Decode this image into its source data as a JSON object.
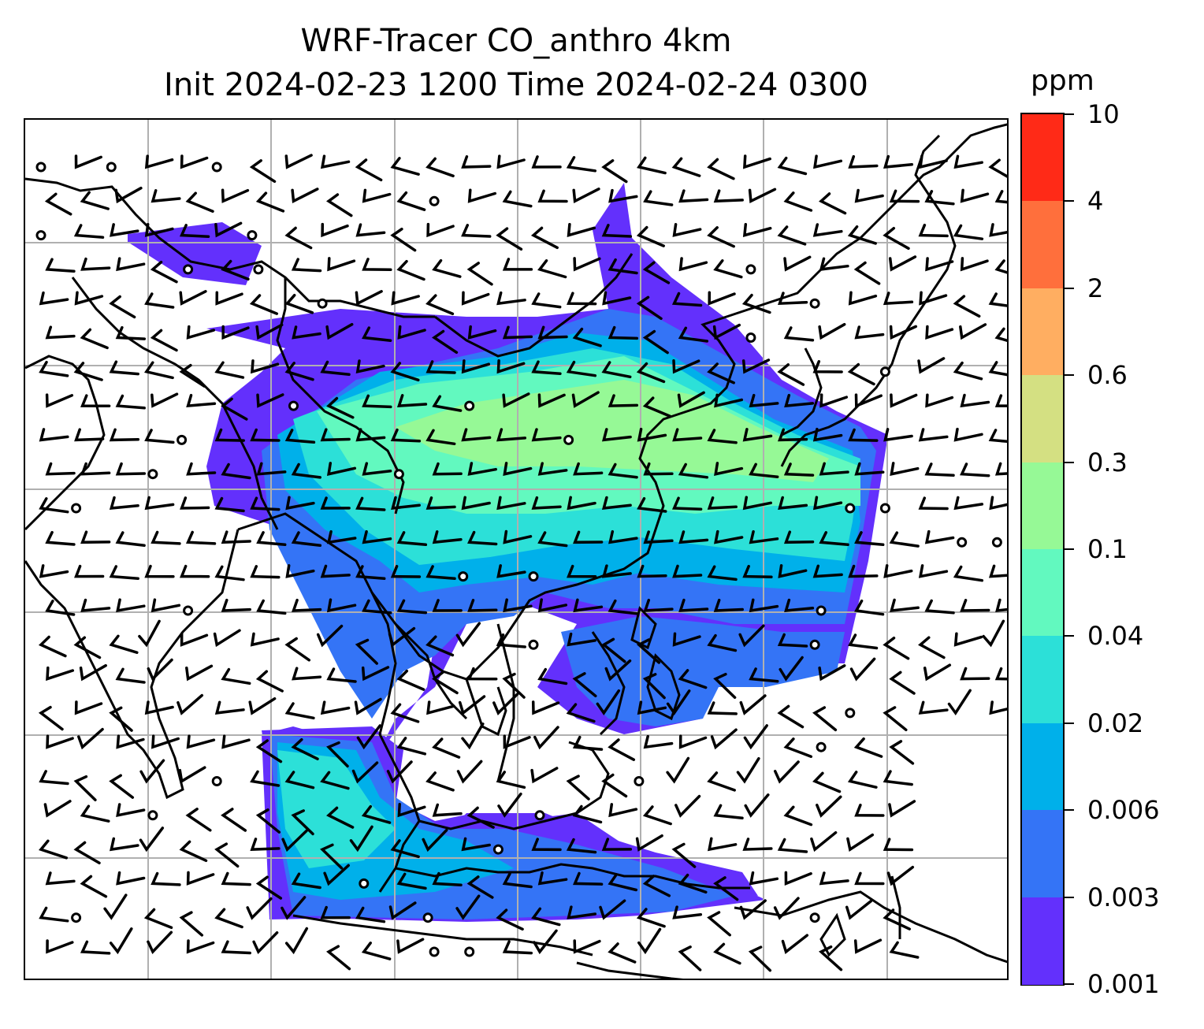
{
  "title": {
    "line1": "WRF-Tracer CO_anthro 4km",
    "line2": "Init 2024-02-23 1200 Time 2024-02-24 0300"
  },
  "colorbar": {
    "unit": "ppm",
    "levels": [
      {
        "label": "10",
        "color": null
      },
      {
        "label": "4",
        "color": "#ff2a17"
      },
      {
        "label": "2",
        "color": "#ff6f3c"
      },
      {
        "label": "0.6",
        "color": "#ffae61"
      },
      {
        "label": "0.3",
        "color": "#d4e082"
      },
      {
        "label": "0.1",
        "color": "#96f996"
      },
      {
        "label": "0.04",
        "color": "#62f9bf"
      },
      {
        "label": "0.02",
        "color": "#2ce0d8"
      },
      {
        "label": "0.006",
        "color": "#00b0ea"
      },
      {
        "label": "0.003",
        "color": "#3474f6"
      },
      {
        "label": "0.001",
        "color": "#6330fc"
      }
    ]
  },
  "map": {
    "variable": "CO_anthro",
    "overlays": [
      "coastlines",
      "country borders",
      "lat/lon gridlines",
      "wind barbs"
    ],
    "gridlines": true
  }
}
